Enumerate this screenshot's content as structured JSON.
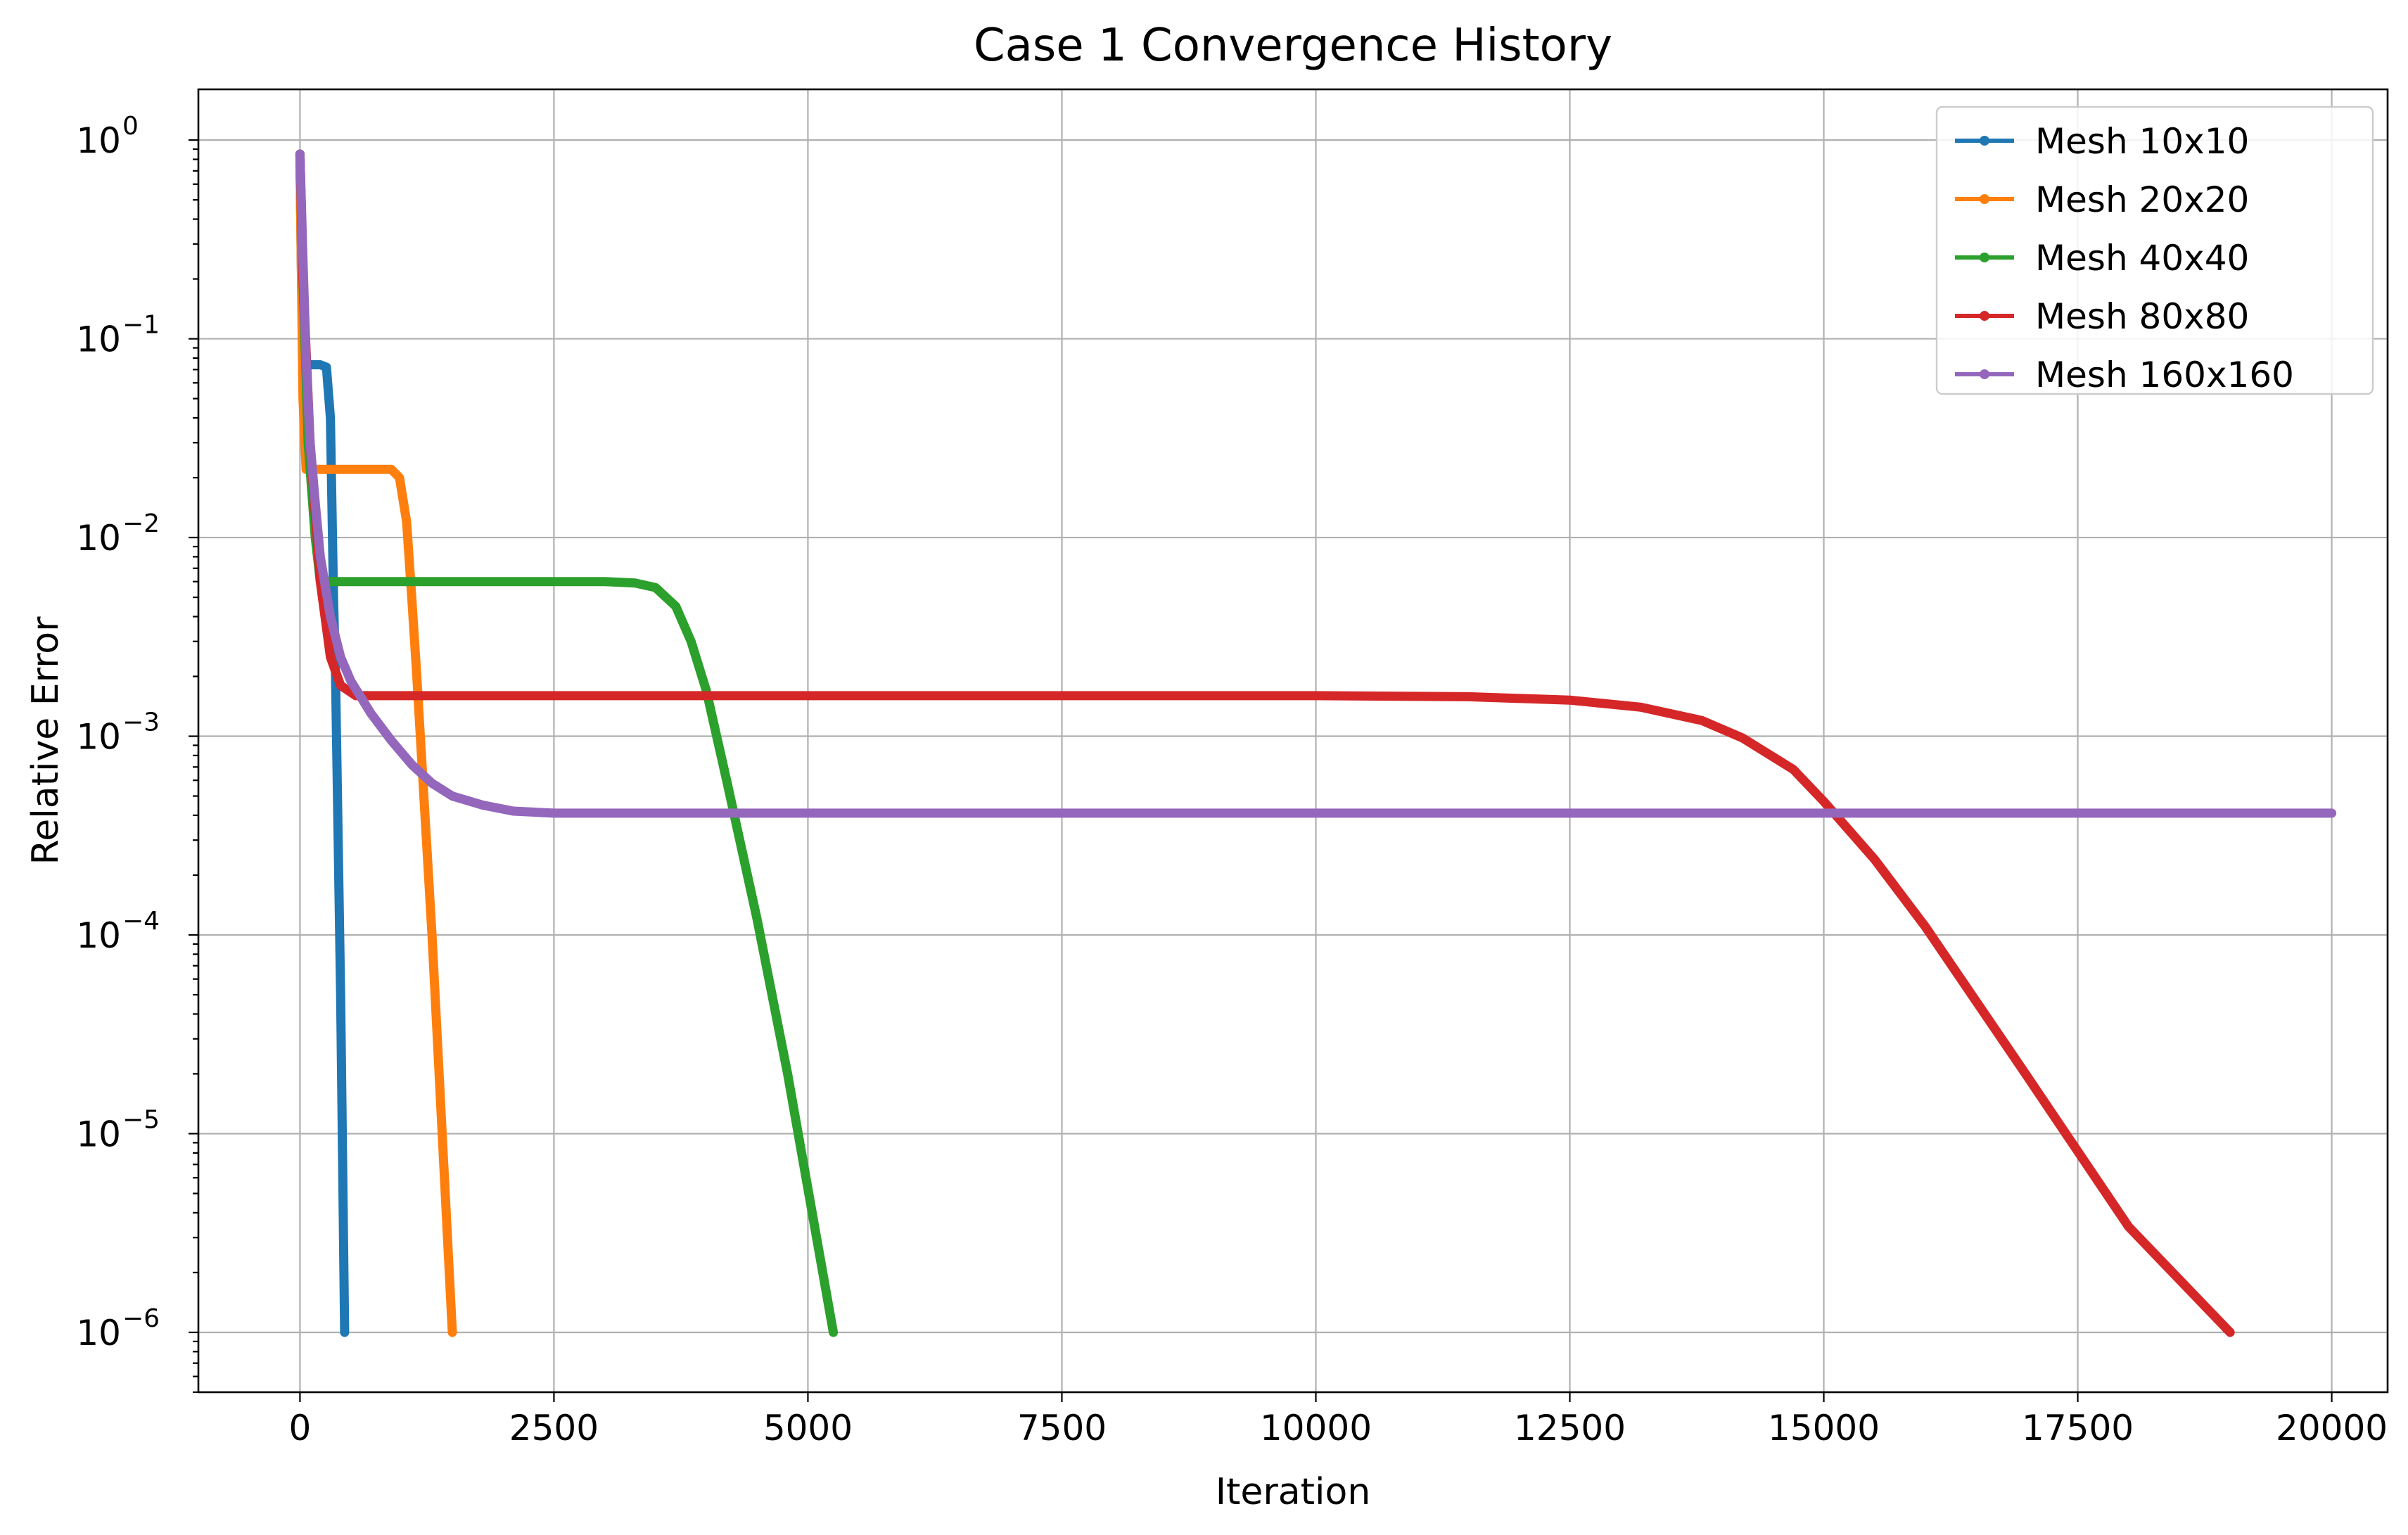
{
  "chart_data": {
    "type": "line",
    "title": "Case 1 Convergence History",
    "xlabel": "Iteration",
    "ylabel": "Relative Error",
    "x_scale": "linear",
    "y_scale": "log",
    "xlim": [
      -1000,
      20550
    ],
    "ylim": [
      5e-07,
      1.8
    ],
    "x_ticks": [
      0,
      2500,
      5000,
      7500,
      10000,
      12500,
      15000,
      17500,
      20000
    ],
    "x_tick_labels": [
      "0",
      "2500",
      "5000",
      "7500",
      "10000",
      "12500",
      "15000",
      "17500",
      "20000"
    ],
    "y_ticks": [
      -6,
      -5,
      -4,
      -3,
      -2,
      -1,
      0
    ],
    "y_tick_labels": [
      {
        "base": "10",
        "exp": "−6"
      },
      {
        "base": "10",
        "exp": "−5"
      },
      {
        "base": "10",
        "exp": "−4"
      },
      {
        "base": "10",
        "exp": "−3"
      },
      {
        "base": "10",
        "exp": "−2"
      },
      {
        "base": "10",
        "exp": "−1"
      },
      {
        "base": "10",
        "exp": "0"
      }
    ],
    "grid": true,
    "legend_position": "top-right",
    "series": [
      {
        "name": "Mesh 10x10",
        "color": "#1f77b4",
        "points": [
          [
            0,
            0.85
          ],
          [
            5,
            0.5
          ],
          [
            15,
            0.2
          ],
          [
            30,
            0.074
          ],
          [
            200,
            0.074
          ],
          [
            260,
            0.072
          ],
          [
            300,
            0.04
          ],
          [
            330,
            0.005
          ],
          [
            350,
            0.002
          ],
          [
            400,
            5e-05
          ],
          [
            440,
            1e-06
          ]
        ]
      },
      {
        "name": "Mesh 20x20",
        "color": "#ff7f0e",
        "points": [
          [
            0,
            0.85
          ],
          [
            10,
            0.3
          ],
          [
            30,
            0.05
          ],
          [
            60,
            0.022
          ],
          [
            900,
            0.022
          ],
          [
            980,
            0.02
          ],
          [
            1050,
            0.012
          ],
          [
            1100,
            0.005
          ],
          [
            1150,
            0.002
          ],
          [
            1300,
            0.0001
          ],
          [
            1500,
            1e-06
          ]
        ]
      },
      {
        "name": "Mesh 40x40",
        "color": "#2ca02c",
        "points": [
          [
            0,
            0.85
          ],
          [
            30,
            0.2
          ],
          [
            80,
            0.03
          ],
          [
            150,
            0.01
          ],
          [
            200,
            0.006
          ],
          [
            3000,
            0.006
          ],
          [
            3300,
            0.0059
          ],
          [
            3500,
            0.0056
          ],
          [
            3700,
            0.0045
          ],
          [
            3850,
            0.003
          ],
          [
            4000,
            0.0017
          ],
          [
            4200,
            0.0006
          ],
          [
            4500,
            0.00012
          ],
          [
            4800,
            2e-05
          ],
          [
            5250,
            1e-06
          ]
        ]
      },
      {
        "name": "Mesh 80x80",
        "color": "#d62728",
        "points": [
          [
            0,
            0.85
          ],
          [
            30,
            0.2
          ],
          [
            100,
            0.03
          ],
          [
            200,
            0.006
          ],
          [
            300,
            0.0025
          ],
          [
            400,
            0.0018
          ],
          [
            550,
            0.0016
          ],
          [
            10000,
            0.0016
          ],
          [
            11500,
            0.00158
          ],
          [
            12500,
            0.00152
          ],
          [
            13200,
            0.0014
          ],
          [
            13800,
            0.0012
          ],
          [
            14200,
            0.00098
          ],
          [
            14700,
            0.00068
          ],
          [
            15000,
            0.00047
          ],
          [
            15500,
            0.00024
          ],
          [
            16000,
            0.00011
          ],
          [
            17000,
            1.95e-05
          ],
          [
            18000,
            3.4e-06
          ],
          [
            19000,
            1e-06
          ]
        ]
      },
      {
        "name": "Mesh 160x160",
        "color": "#9467bd",
        "points": [
          [
            0,
            0.85
          ],
          [
            30,
            0.25
          ],
          [
            60,
            0.08
          ],
          [
            100,
            0.03
          ],
          [
            150,
            0.015
          ],
          [
            200,
            0.008
          ],
          [
            300,
            0.004
          ],
          [
            400,
            0.0025
          ],
          [
            500,
            0.0019
          ],
          [
            700,
            0.0013
          ],
          [
            900,
            0.00095
          ],
          [
            1100,
            0.00072
          ],
          [
            1300,
            0.00058
          ],
          [
            1500,
            0.0005
          ],
          [
            1800,
            0.00045
          ],
          [
            2100,
            0.00042
          ],
          [
            2500,
            0.00041
          ],
          [
            20000,
            0.00041
          ]
        ]
      }
    ]
  }
}
